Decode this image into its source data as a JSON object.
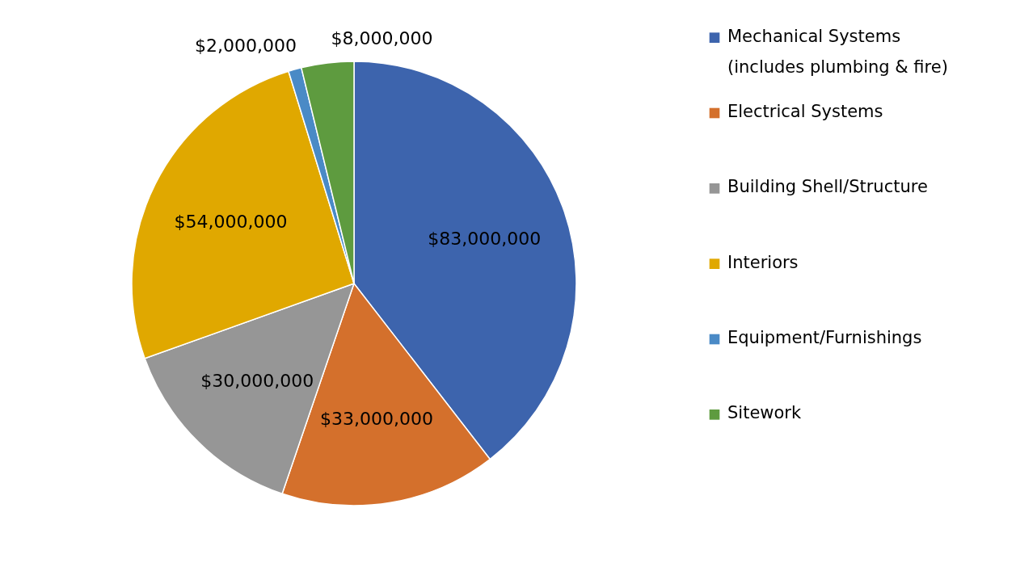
{
  "chart_data": {
    "type": "pie",
    "categories": [
      "Mechanical Systems\n(includes plumbing & fire)",
      "Electrical Systems",
      "Building Shell/Structure",
      "Interiors",
      "Equipment/Furnishings",
      "Sitework"
    ],
    "values": [
      83000000,
      33000000,
      30000000,
      54000000,
      2000000,
      8000000
    ],
    "colors": [
      "#3d64ad",
      "#d4702c",
      "#969696",
      "#e0a800",
      "#4a8ac6",
      "#5e9b3f"
    ],
    "value_labels": [
      "$83,000,000",
      "$33,000,000",
      "$30,000,000",
      "$54,000,000",
      "$2,000,000",
      "$8,000,000"
    ],
    "legend": "right"
  }
}
